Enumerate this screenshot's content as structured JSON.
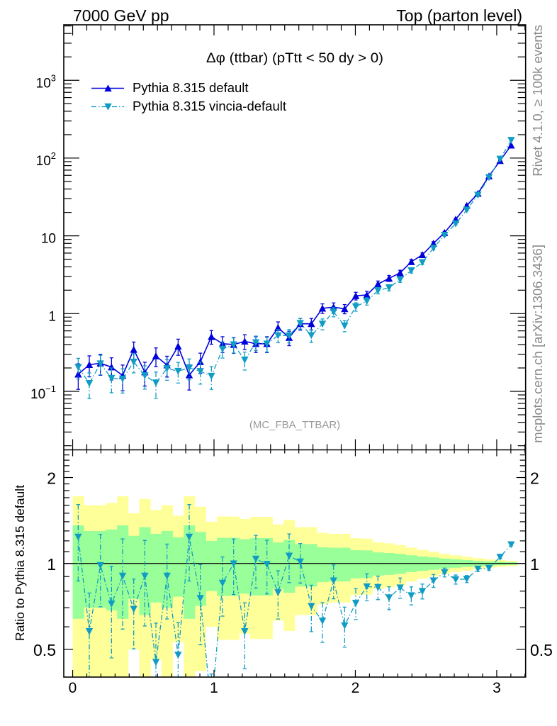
{
  "header": {
    "left": "7000 GeV pp",
    "right": "Top (parton level)"
  },
  "side_labels": {
    "rivet": "Rivet 4.1.0, ≥ 100k events",
    "mcplots": "mcplots.cern.ch [arXiv:1306.3436]"
  },
  "chart_data": [
    {
      "type": "line",
      "title": "Δφ (ttbar) (pTtt < 50 dy > 0)",
      "annotation": "(MC_FBA_TTBAR)",
      "xlabel": "",
      "ylabel": "",
      "xscale": "linear",
      "yscale": "log",
      "xlim": [
        -0.0628,
        3.2044
      ],
      "ylim": [
        0.0177,
        5170
      ],
      "grid": false,
      "legend": {
        "position": "top-left"
      },
      "bin_width": 0.0785,
      "xticks": [
        0,
        1,
        2,
        3
      ],
      "yticks": [
        0.1,
        1,
        10,
        100,
        1000
      ],
      "ytick_labels": [
        {
          "base": "10",
          "exp": "−1"
        },
        {
          "base": "1",
          "exp": ""
        },
        {
          "base": "10",
          "exp": ""
        },
        {
          "base": "10",
          "exp": "2"
        },
        {
          "base": "10",
          "exp": "3"
        }
      ],
      "x": [
        0.0393,
        0.1178,
        0.1963,
        0.2749,
        0.3534,
        0.432,
        0.5105,
        0.589,
        0.6676,
        0.7461,
        0.8247,
        0.9032,
        0.9817,
        1.0603,
        1.1388,
        1.2174,
        1.2959,
        1.3744,
        1.453,
        1.5315,
        1.6101,
        1.6886,
        1.7671,
        1.8457,
        1.9242,
        2.0028,
        2.0813,
        2.1598,
        2.2384,
        2.3169,
        2.3955,
        2.474,
        2.5525,
        2.6311,
        2.7096,
        2.7882,
        2.8667,
        2.9452,
        3.0238,
        3.1023
      ],
      "series": [
        {
          "name": "Pythia 8.315 default",
          "key": "default",
          "marker": "triangle-up",
          "linestyle": "solid",
          "color": "#0000dd",
          "values": [
            0.166,
            0.22,
            0.23,
            0.205,
            0.16,
            0.345,
            0.177,
            0.285,
            0.218,
            0.38,
            0.162,
            0.24,
            0.505,
            0.41,
            0.4,
            0.44,
            0.41,
            0.41,
            0.66,
            0.49,
            0.74,
            0.74,
            1.17,
            1.21,
            1.15,
            1.69,
            1.74,
            2.4,
            2.84,
            3.34,
            4.64,
            5.7,
            8.0,
            11.0,
            16.3,
            24.5,
            35.0,
            58.6,
            92.5,
            146
          ],
          "errors": [
            0.06,
            0.066,
            0.069,
            0.065,
            0.058,
            0.086,
            0.06,
            0.077,
            0.065,
            0.089,
            0.058,
            0.07,
            0.101,
            0.094,
            0.092,
            0.095,
            0.094,
            0.094,
            0.122,
            0.103,
            0.126,
            0.126,
            0.164,
            0.163,
            0.155,
            0.191,
            0.193,
            0.223,
            0.25,
            0.267,
            0.316,
            0.331,
            0.4,
            0.44,
            0.554,
            0.686,
            0.77,
            1.0,
            1.3,
            1.61
          ]
        },
        {
          "name": "Pythia 8.315 vincia-default",
          "key": "vincia",
          "marker": "triangle-down",
          "linestyle": "dash-dot",
          "color": "#109cc4",
          "values": [
            0.205,
            0.127,
            0.227,
            0.148,
            0.145,
            0.239,
            0.16,
            0.129,
            0.197,
            0.182,
            0.201,
            0.181,
            0.157,
            0.35,
            0.399,
            0.254,
            0.425,
            0.408,
            0.522,
            0.521,
            0.75,
            0.524,
            0.736,
            1.053,
            0.697,
            1.227,
            1.444,
            1.98,
            2.156,
            2.745,
            3.582,
            4.554,
            6.96,
            10.23,
            14.33,
            21.6,
            33.5,
            56.4,
            97.4,
            170
          ],
          "errors": [
            0.061,
            0.046,
            0.064,
            0.052,
            0.05,
            0.066,
            0.053,
            0.048,
            0.058,
            0.054,
            0.06,
            0.057,
            0.051,
            0.082,
            0.088,
            0.066,
            0.089,
            0.087,
            0.1,
            0.101,
            0.118,
            0.097,
            0.117,
            0.143,
            0.112,
            0.152,
            0.157,
            0.187,
            0.199,
            0.224,
            0.26,
            0.274,
            0.36,
            0.363,
            0.52,
            0.61,
            0.7,
            0.94,
            1.3,
            1.75
          ]
        }
      ]
    },
    {
      "type": "line",
      "title": "",
      "xlabel": "",
      "ylabel": "Ratio to Pythia 8.315 default",
      "xscale": "linear",
      "yscale": "log",
      "xlim": [
        -0.0628,
        3.2044
      ],
      "ylim": [
        0.4,
        2.5
      ],
      "grid": false,
      "bin_width": 0.0785,
      "xticks": [
        0,
        1,
        2,
        3
      ],
      "xtick_labels": [
        "0",
        "1",
        "2",
        "3"
      ],
      "yticks": [
        0.5,
        1,
        2
      ],
      "ytick_labels": [
        "0.5",
        "1",
        "2"
      ],
      "reference_line": 1,
      "reference_band": {
        "name": "Pythia 8.315 default",
        "colors": {
          "1sigma": "#99ff99",
          "2sigma": "#ffff99"
        },
        "rel_err": [
          0.36,
          0.3,
          0.3,
          0.315,
          0.36,
          0.25,
          0.34,
          0.27,
          0.3,
          0.235,
          0.36,
          0.29,
          0.2,
          0.23,
          0.23,
          0.216,
          0.228,
          0.228,
          0.185,
          0.21,
          0.17,
          0.17,
          0.14,
          0.135,
          0.135,
          0.113,
          0.111,
          0.093,
          0.088,
          0.08,
          0.068,
          0.058,
          0.05,
          0.04,
          0.034,
          0.028,
          0.022,
          0.017,
          0.014,
          0.011
        ]
      },
      "x": [
        0.0393,
        0.1178,
        0.1963,
        0.2749,
        0.3534,
        0.432,
        0.5105,
        0.589,
        0.6676,
        0.7461,
        0.8247,
        0.9032,
        0.9817,
        1.0603,
        1.1388,
        1.2174,
        1.2959,
        1.3744,
        1.453,
        1.5315,
        1.6101,
        1.6886,
        1.7671,
        1.8457,
        1.9242,
        2.0028,
        2.0813,
        2.1598,
        2.2384,
        2.3169,
        2.3955,
        2.474,
        2.5525,
        2.6311,
        2.7096,
        2.7882,
        2.8667,
        2.9452,
        3.0238,
        3.1023
      ],
      "series": [
        {
          "name": "Pythia 8.315 vincia-default",
          "key": "vincia-ratio",
          "marker": "triangle-down",
          "linestyle": "dash-dot",
          "color": "#109cc4",
          "values": [
            1.238,
            0.578,
            0.985,
            0.722,
            0.904,
            0.692,
            0.904,
            0.451,
            0.904,
            0.478,
            1.238,
            0.755,
            0.31,
            0.854,
            0.998,
            0.578,
            1.037,
            0.994,
            0.791,
            1.063,
            1.014,
            0.708,
            0.629,
            0.87,
            0.606,
            0.726,
            0.83,
            0.825,
            0.759,
            0.822,
            0.772,
            0.799,
            0.87,
            0.93,
            0.879,
            0.882,
            0.957,
            0.963,
            1.053,
            1.165
          ],
          "errors": [
            0.37,
            0.21,
            0.28,
            0.255,
            0.315,
            0.19,
            0.3,
            0.167,
            0.265,
            0.142,
            0.37,
            0.236,
            0.1,
            0.2,
            0.22,
            0.15,
            0.217,
            0.212,
            0.152,
            0.206,
            0.16,
            0.131,
            0.1,
            0.118,
            0.097,
            0.09,
            0.09,
            0.078,
            0.07,
            0.067,
            0.056,
            0.048,
            0.045,
            0.033,
            0.032,
            0.025,
            0.02,
            0.016,
            0.014,
            0.012
          ]
        }
      ]
    }
  ]
}
